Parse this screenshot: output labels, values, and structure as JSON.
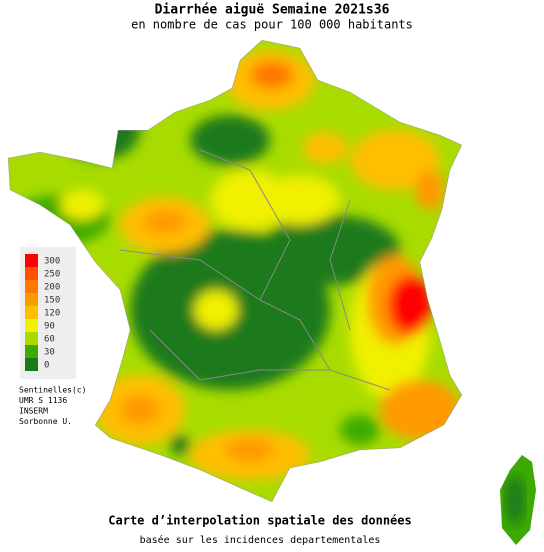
{
  "title": "Diarrhée aiguë Semaine 2021s36",
  "subtitle": "en nombre de cas pour 100 000 habitants",
  "legend": {
    "items": [
      {
        "value": 300,
        "color": "#ff0000"
      },
      {
        "value": 250,
        "color": "#ff5000"
      },
      {
        "value": 200,
        "color": "#ff7800"
      },
      {
        "value": 150,
        "color": "#ff9a00"
      },
      {
        "value": 120,
        "color": "#ffbe00"
      },
      {
        "value": 90,
        "color": "#f0f000"
      },
      {
        "value": 60,
        "color": "#a8dc00"
      },
      {
        "value": 30,
        "color": "#3caa00"
      },
      {
        "value": 0,
        "color": "#1a7a1a"
      }
    ]
  },
  "credits": [
    "Sentinelles(c)",
    "UMR S 1136",
    "INSERM",
    "Sorbonne U."
  ],
  "footer": {
    "title": "Carte d’interpolation spatiale des données",
    "subtitle": "basée sur les incidences departementales"
  }
}
